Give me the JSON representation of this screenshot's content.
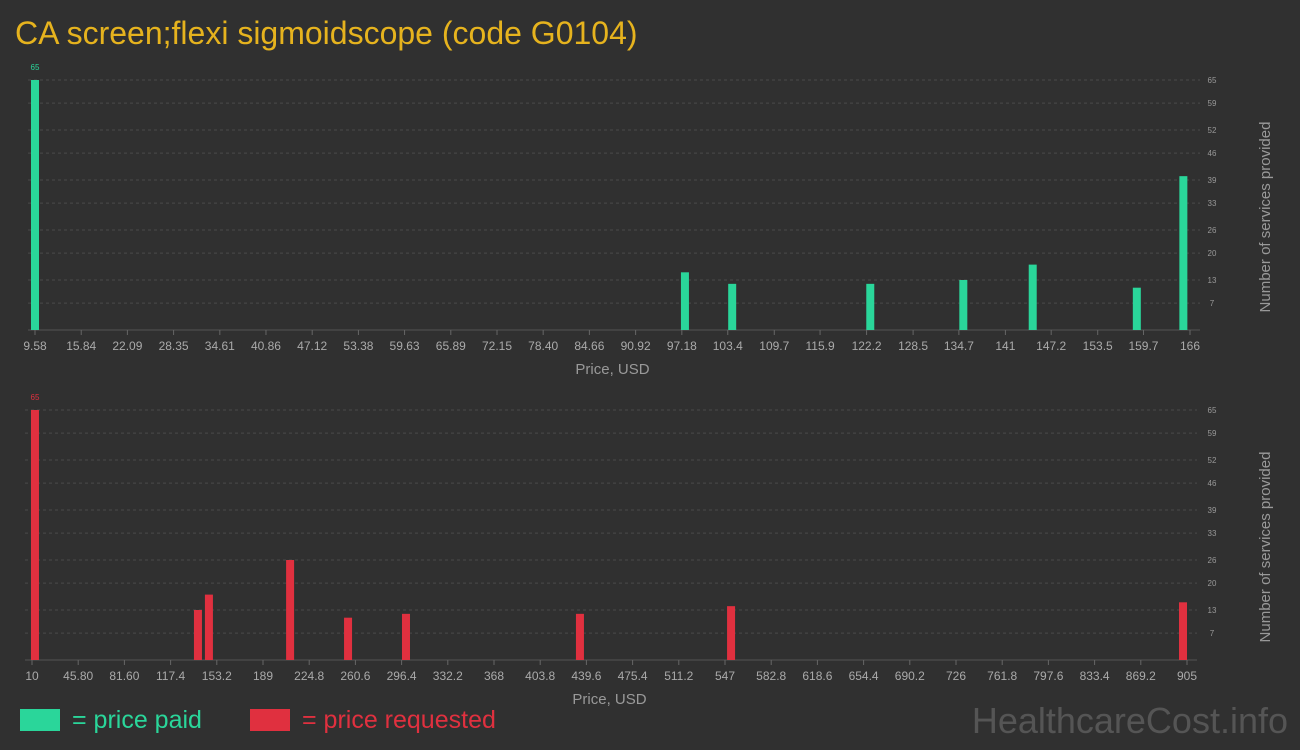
{
  "title": "CA screen;flexi sigmoidscope (code G0104)",
  "watermark": "HealthcareCost.info",
  "chart_data": [
    {
      "type": "bar",
      "xlabel": "Price, USD",
      "ylabel": "Number of services provided",
      "x": [
        9.58,
        97.6,
        104,
        122.7,
        135.3,
        144.7,
        158.8,
        165.1
      ],
      "series": [
        {
          "name": "= price paid",
          "color": "#2ad69a",
          "values": [
            65,
            15,
            12,
            12,
            13,
            17,
            11,
            40
          ]
        }
      ],
      "xlim": [
        9.58,
        166
      ],
      "xticks": [
        9.58,
        15.84,
        22.09,
        28.35,
        34.61,
        40.86,
        47.12,
        53.38,
        59.63,
        65.89,
        72.15,
        {
          "value": 78.4,
          "label": "78.40"
        },
        84.66,
        90.92,
        97.18,
        103.4,
        109.7,
        115.9,
        122.2,
        128.5,
        134.7,
        141,
        147.2,
        153.5,
        159.7,
        166
      ],
      "ylim": [
        0,
        65
      ],
      "yticks": [
        7,
        13,
        20,
        26,
        33,
        39,
        46,
        52,
        59,
        65
      ],
      "grid": true
    },
    {
      "type": "bar",
      "xlabel": "Price, USD",
      "ylabel": "Number of services provided",
      "x": [
        12.3,
        138.6,
        147.1,
        210,
        254.9,
        299.8,
        434.6,
        551.7,
        901.9
      ],
      "series": [
        {
          "name": "= price requested",
          "color": "#e0303f",
          "values": [
            65,
            13,
            17,
            26,
            11,
            12,
            12,
            14,
            15
          ]
        }
      ],
      "xlim": [
        10,
        905
      ],
      "xticks": [
        10,
        {
          "value": 45.8,
          "label": "45.80"
        },
        {
          "value": 81.6,
          "label": "81.60"
        },
        117.4,
        153.2,
        189,
        224.8,
        260.6,
        296.4,
        332.2,
        368,
        403.8,
        439.6,
        475.4,
        511.2,
        547,
        582.8,
        618.6,
        654.4,
        690.2,
        726,
        761.8,
        797.6,
        833.4,
        869.2,
        905
      ],
      "ylim": [
        0,
        65
      ],
      "yticks": [
        7,
        13,
        20,
        26,
        33,
        39,
        46,
        52,
        59,
        65
      ],
      "grid": true
    }
  ]
}
